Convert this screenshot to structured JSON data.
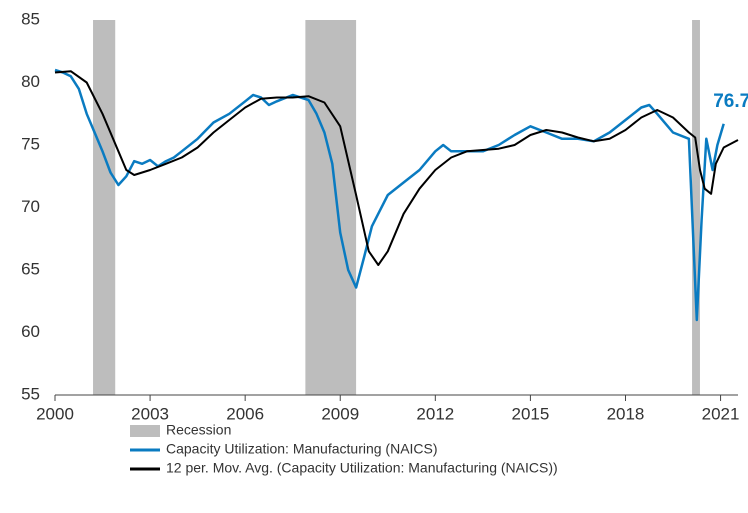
{
  "chart_data": {
    "type": "line",
    "xlim": [
      2000,
      2021.55
    ],
    "xticks": [
      2000,
      2003,
      2006,
      2009,
      2012,
      2015,
      2018,
      2021
    ],
    "ylim": [
      55,
      85
    ],
    "yticks": [
      55,
      60,
      65,
      70,
      75,
      80,
      85
    ],
    "grid": false,
    "legend": "bottom",
    "recessions": {
      "name": "Recession",
      "color": "#bdbdbd",
      "spans": [
        [
          2001.2,
          2001.9
        ],
        [
          2007.9,
          2009.5
        ],
        [
          2020.1,
          2020.35
        ]
      ]
    },
    "series": [
      {
        "name": "Capacity Utilization: Manufacturing (NAICS)",
        "color": "#0a7bc1",
        "label_last": true,
        "x": [
          2000.0,
          2000.25,
          2000.5,
          2000.75,
          2001.0,
          2001.25,
          2001.5,
          2001.75,
          2002.0,
          2002.25,
          2002.5,
          2002.75,
          2003.0,
          2003.25,
          2003.5,
          2003.75,
          2004.0,
          2004.5,
          2005.0,
          2005.5,
          2006.0,
          2006.25,
          2006.5,
          2006.75,
          2007.0,
          2007.5,
          2007.75,
          2008.0,
          2008.25,
          2008.5,
          2008.75,
          2009.0,
          2009.25,
          2009.5,
          2009.75,
          2010.0,
          2010.5,
          2011.0,
          2011.5,
          2012.0,
          2012.25,
          2012.5,
          2013.0,
          2013.5,
          2014.0,
          2014.5,
          2015.0,
          2015.5,
          2016.0,
          2016.5,
          2017.0,
          2017.5,
          2018.0,
          2018.5,
          2018.75,
          2019.0,
          2019.5,
          2020.0,
          2020.25,
          2020.4,
          2020.55,
          2020.75,
          2020.9,
          2021.1
        ],
        "values": [
          81.0,
          80.8,
          80.5,
          79.5,
          77.5,
          76.0,
          74.5,
          72.8,
          71.8,
          72.5,
          73.7,
          73.5,
          73.8,
          73.3,
          73.7,
          74.0,
          74.5,
          75.5,
          76.8,
          77.5,
          78.5,
          79.0,
          78.8,
          78.2,
          78.5,
          79.0,
          78.8,
          78.6,
          77.5,
          76.0,
          73.5,
          68.0,
          65.0,
          63.6,
          66.0,
          68.5,
          71.0,
          72.0,
          73.0,
          74.5,
          75.0,
          74.5,
          74.5,
          74.5,
          75.0,
          75.8,
          76.5,
          76.0,
          75.5,
          75.5,
          75.3,
          76.0,
          77.0,
          78.0,
          78.2,
          77.5,
          76.0,
          75.5,
          61.0,
          69.0,
          75.5,
          73.0,
          75.0,
          76.7
        ]
      },
      {
        "name": "12 per. Mov. Avg. (Capacity Utilization: Manufacturing (NAICS))",
        "color": "#000000",
        "label_last": false,
        "x": [
          2000.0,
          2000.5,
          2001.0,
          2001.5,
          2002.0,
          2002.25,
          2002.5,
          2003.0,
          2003.5,
          2004.0,
          2004.5,
          2005.0,
          2005.5,
          2006.0,
          2006.5,
          2007.0,
          2007.5,
          2008.0,
          2008.5,
          2009.0,
          2009.5,
          2009.9,
          2010.2,
          2010.5,
          2011.0,
          2011.5,
          2012.0,
          2012.5,
          2013.0,
          2013.5,
          2014.0,
          2014.5,
          2015.0,
          2015.5,
          2016.0,
          2016.5,
          2017.0,
          2017.5,
          2018.0,
          2018.5,
          2019.0,
          2019.5,
          2020.0,
          2020.2,
          2020.35,
          2020.5,
          2020.7,
          2020.85,
          2021.1,
          2021.55
        ],
        "values": [
          80.8,
          80.9,
          80.0,
          77.5,
          74.5,
          73.0,
          72.6,
          73.0,
          73.5,
          74.0,
          74.8,
          76.0,
          77.0,
          78.0,
          78.7,
          78.8,
          78.8,
          78.9,
          78.4,
          76.5,
          71.0,
          66.5,
          65.4,
          66.5,
          69.5,
          71.5,
          73.0,
          74.0,
          74.5,
          74.6,
          74.7,
          75.0,
          75.8,
          76.2,
          76.0,
          75.6,
          75.3,
          75.5,
          76.2,
          77.2,
          77.8,
          77.2,
          76.0,
          75.6,
          73.0,
          71.5,
          71.1,
          73.5,
          74.8,
          75.4
        ]
      }
    ]
  }
}
